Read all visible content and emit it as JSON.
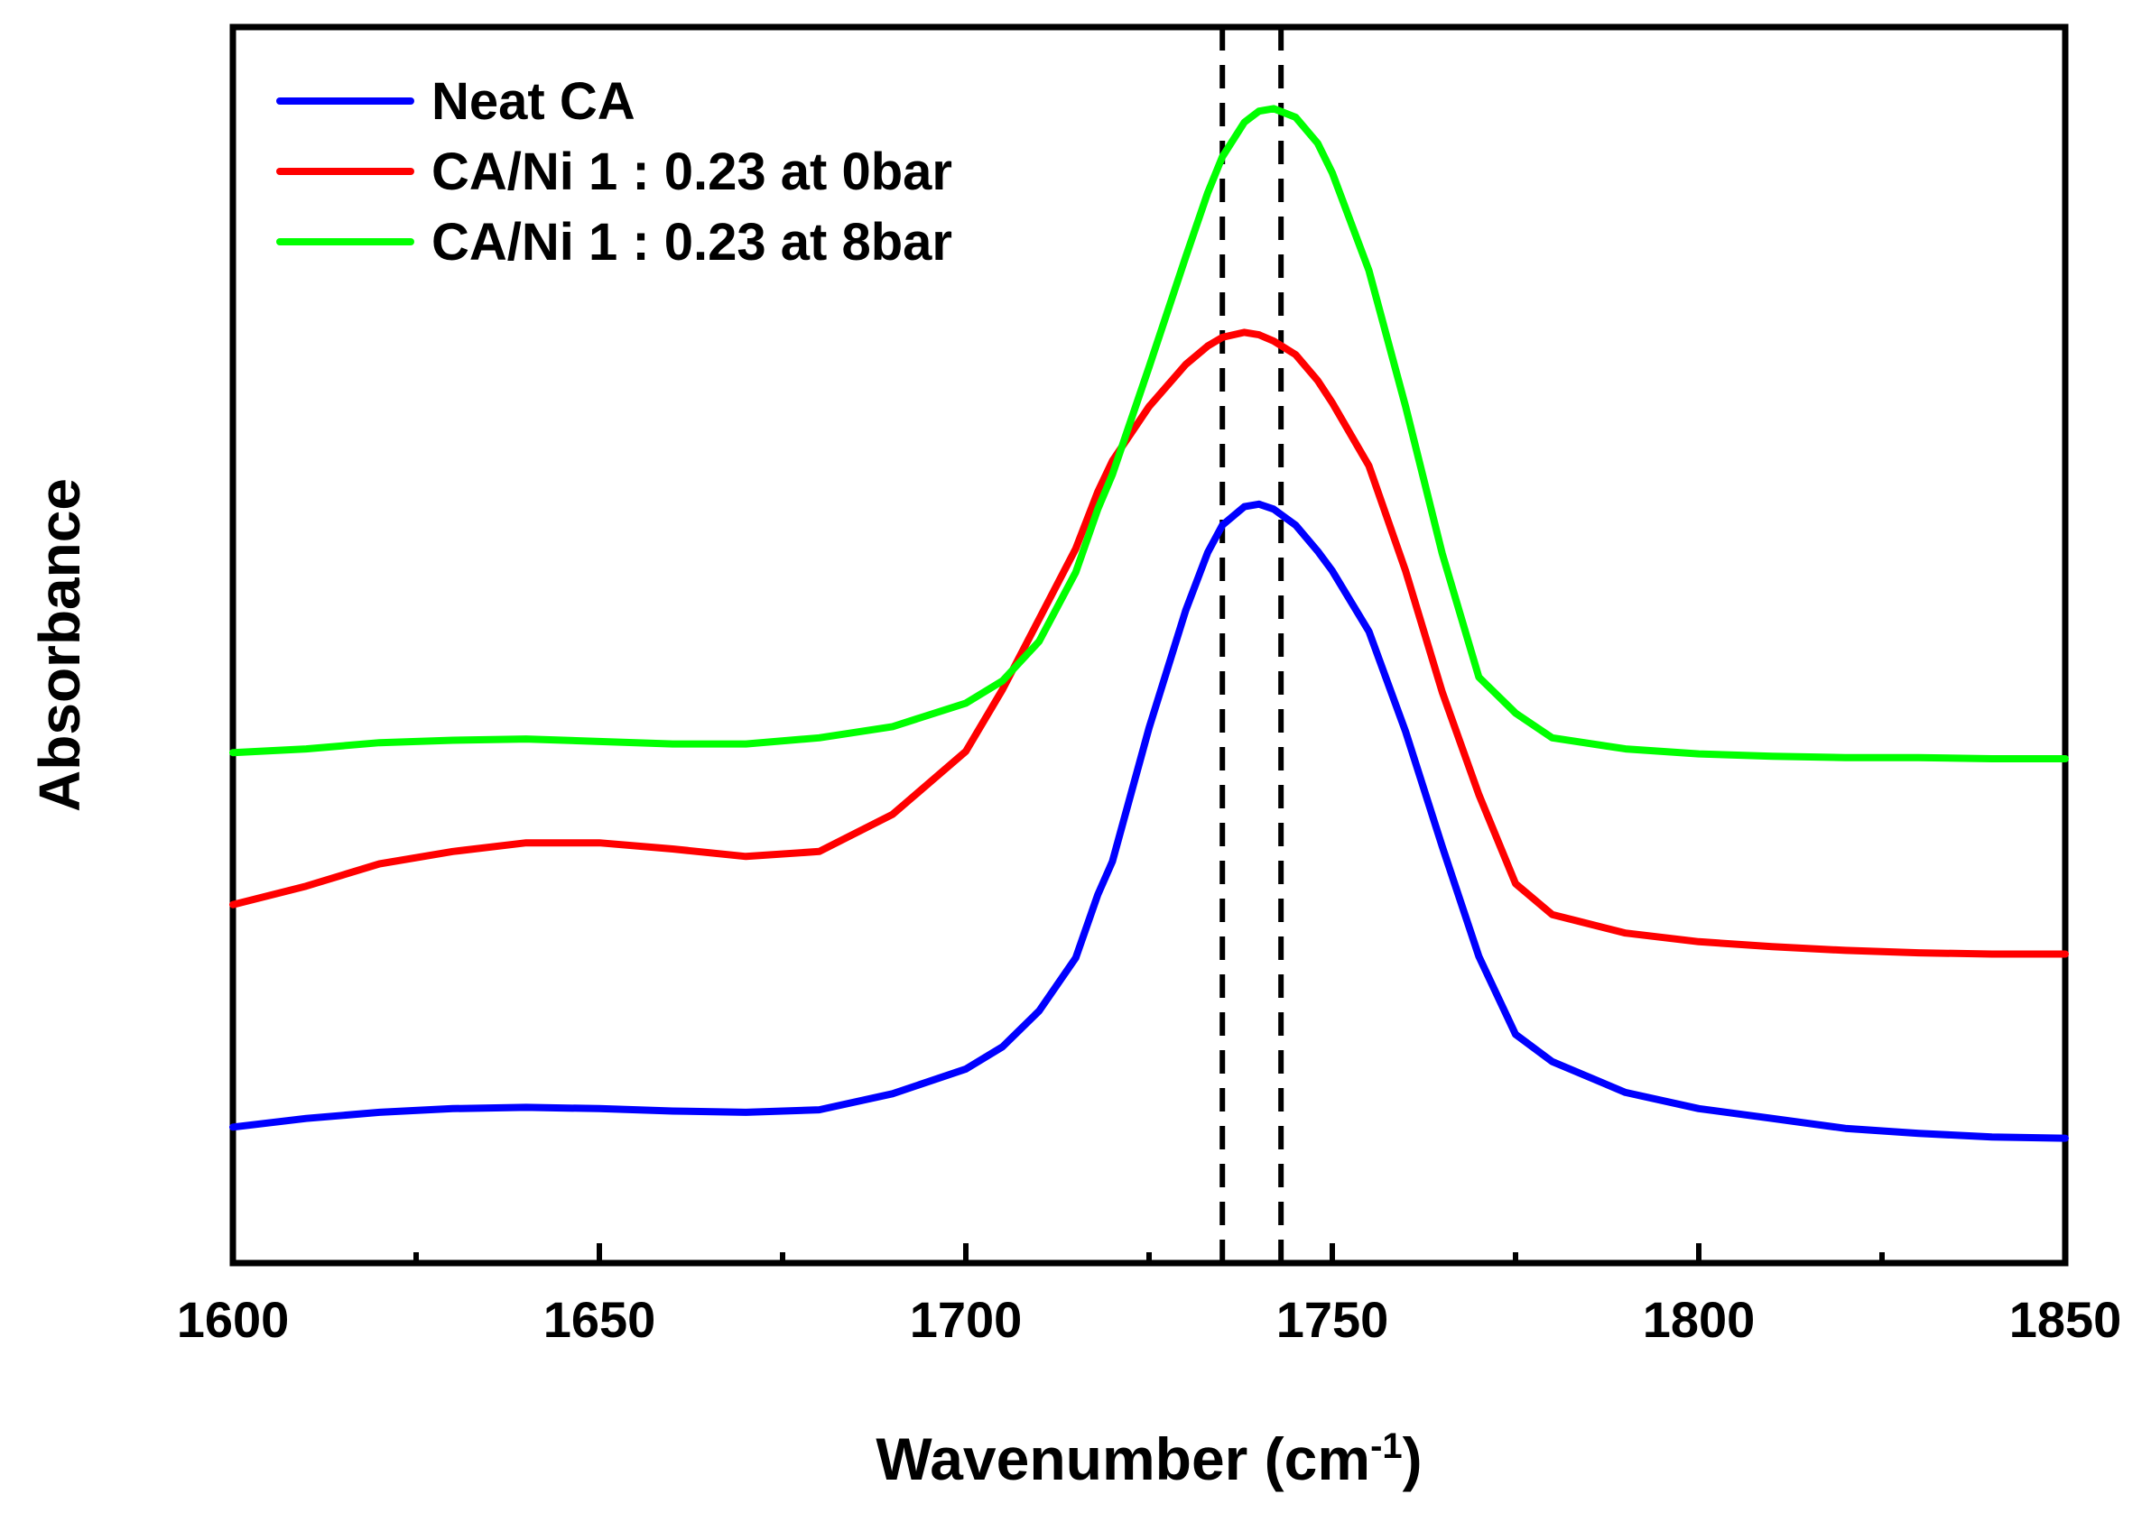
{
  "chart_data": {
    "type": "line",
    "title": "",
    "xlabel": "Wavenumber (cm",
    "xlabel_sup": "-1",
    "xlabel_close": ")",
    "ylabel": "Absorbance",
    "xlim": [
      1600,
      1850
    ],
    "ylim": [
      0,
      1
    ],
    "xticks": [
      1600,
      1650,
      1700,
      1750,
      1800,
      1850
    ],
    "xtick_labels": [
      "1600",
      "1650",
      "1700",
      "1750",
      "1800",
      "1850"
    ],
    "xminor_ticks": [
      1625,
      1675,
      1725,
      1775,
      1825
    ],
    "yticks_shown": false,
    "grid": false,
    "legend_position": "top-left",
    "reference_lines": [
      {
        "axis": "x",
        "value": 1735,
        "style": "dashed",
        "color": "#000000"
      },
      {
        "axis": "x",
        "value": 1743,
        "style": "dashed",
        "color": "#000000"
      }
    ],
    "series": [
      {
        "name": "Neat CA",
        "color": "#0000ff",
        "x": [
          1600,
          1610,
          1620,
          1630,
          1640,
          1650,
          1660,
          1670,
          1680,
          1690,
          1700,
          1705,
          1710,
          1715,
          1718,
          1720,
          1725,
          1730,
          1733,
          1735,
          1738,
          1740,
          1742,
          1745,
          1748,
          1750,
          1755,
          1760,
          1765,
          1770,
          1775,
          1780,
          1790,
          1800,
          1810,
          1820,
          1830,
          1840,
          1850
        ],
        "y": [
          0.11,
          0.117,
          0.122,
          0.125,
          0.126,
          0.125,
          0.123,
          0.122,
          0.124,
          0.137,
          0.157,
          0.175,
          0.204,
          0.247,
          0.298,
          0.325,
          0.433,
          0.528,
          0.575,
          0.597,
          0.612,
          0.614,
          0.61,
          0.597,
          0.576,
          0.56,
          0.511,
          0.43,
          0.337,
          0.248,
          0.185,
          0.163,
          0.138,
          0.125,
          0.117,
          0.109,
          0.105,
          0.102,
          0.101
        ]
      },
      {
        "name": "CA/Ni 1 : 0.23 at 0bar",
        "color": "#ff0000",
        "x": [
          1600,
          1610,
          1620,
          1630,
          1640,
          1650,
          1660,
          1670,
          1680,
          1690,
          1700,
          1705,
          1710,
          1715,
          1718,
          1720,
          1725,
          1730,
          1733,
          1735,
          1738,
          1740,
          1742,
          1745,
          1748,
          1750,
          1755,
          1760,
          1765,
          1770,
          1775,
          1780,
          1790,
          1800,
          1810,
          1820,
          1830,
          1840,
          1850
        ],
        "y": [
          0.29,
          0.305,
          0.323,
          0.333,
          0.34,
          0.34,
          0.335,
          0.329,
          0.333,
          0.363,
          0.414,
          0.464,
          0.521,
          0.578,
          0.624,
          0.649,
          0.693,
          0.727,
          0.742,
          0.749,
          0.753,
          0.751,
          0.746,
          0.735,
          0.714,
          0.696,
          0.645,
          0.56,
          0.462,
          0.379,
          0.307,
          0.282,
          0.267,
          0.26,
          0.256,
          0.253,
          0.251,
          0.25,
          0.25
        ]
      },
      {
        "name": "CA/Ni 1 : 0.23 at 8bar",
        "color": "#00ff00",
        "x": [
          1600,
          1610,
          1620,
          1630,
          1640,
          1650,
          1660,
          1670,
          1680,
          1690,
          1700,
          1705,
          1710,
          1715,
          1718,
          1720,
          1725,
          1730,
          1733,
          1735,
          1738,
          1740,
          1742,
          1745,
          1748,
          1750,
          1755,
          1760,
          1765,
          1770,
          1775,
          1780,
          1790,
          1800,
          1810,
          1820,
          1830,
          1840,
          1850
        ],
        "y": [
          0.413,
          0.416,
          0.421,
          0.423,
          0.424,
          0.422,
          0.42,
          0.42,
          0.425,
          0.434,
          0.453,
          0.471,
          0.503,
          0.559,
          0.61,
          0.638,
          0.725,
          0.814,
          0.866,
          0.895,
          0.923,
          0.932,
          0.934,
          0.927,
          0.906,
          0.882,
          0.803,
          0.693,
          0.574,
          0.474,
          0.445,
          0.425,
          0.416,
          0.412,
          0.41,
          0.409,
          0.409,
          0.408,
          0.408
        ]
      }
    ]
  }
}
